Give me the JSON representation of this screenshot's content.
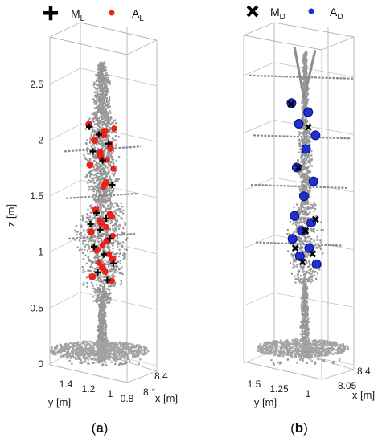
{
  "colors": {
    "cloud": "#8c8c8c",
    "ground": "#a3a3a3",
    "box": "#b4b4b4",
    "axis_text": "#1a1a1a",
    "marker_M": "#000000",
    "marker_A_L": "#e8231c",
    "marker_A_D": "#1f2fd6"
  },
  "panels": [
    {
      "label": "(a)",
      "legend": [
        {
          "name": "M",
          "sub": "L",
          "marker": "plus",
          "color": "#000000"
        },
        {
          "name": "A",
          "sub": "L",
          "marker": "dot",
          "color": "#e8231c"
        }
      ],
      "zlabel": "z [m]",
      "ylabel": "y [m]",
      "xlabel": "x [m]",
      "z_ticks": [
        "0",
        "0.5",
        "1",
        "1.5",
        "2",
        "2.5"
      ],
      "y_ticks": [
        "1.4",
        "1.2",
        "1",
        "0.8"
      ],
      "x_ticks": [
        "8.1",
        "8.4"
      ]
    },
    {
      "label": "(b)",
      "legend": [
        {
          "name": "M",
          "sub": "D",
          "marker": "cross",
          "color": "#000000"
        },
        {
          "name": "A",
          "sub": "D",
          "marker": "dot",
          "color": "#1f2fd6"
        }
      ],
      "ylabel": "y [m]",
      "xlabel": "x [m]",
      "y_ticks": [
        "1.5",
        "1.25",
        "1"
      ],
      "x_ticks": [
        "8.05",
        "8.4"
      ]
    }
  ],
  "chart_data": [
    {
      "type": "scatter",
      "description_type": "3d point cloud",
      "zlabel": "z [m]",
      "ylabel": "y [m]",
      "xlabel": "x [m]",
      "zlim": [
        0,
        2.75
      ],
      "series": [
        {
          "name": "M_L",
          "marker": "plus",
          "color": "#000000",
          "z": [
            2.12,
            2.05,
            1.97,
            1.9,
            1.82,
            1.6,
            1.35,
            1.3,
            1.25,
            1.2,
            1.12,
            1.05,
            0.98,
            0.9,
            0.82,
            0.75
          ]
        },
        {
          "name": "A_L",
          "marker": "dot",
          "color": "#e8231c",
          "z": [
            2.14,
            2.08,
            2.0,
            1.93,
            1.86,
            1.78,
            1.62,
            1.38,
            1.32,
            1.26,
            1.18,
            1.1,
            1.02,
            0.94,
            0.86,
            0.78
          ]
        }
      ]
    },
    {
      "type": "scatter",
      "description_type": "3d point cloud",
      "ylabel": "y [m]",
      "xlabel": "x [m]",
      "series": [
        {
          "name": "M_D",
          "marker": "cross",
          "color": "#000000",
          "z": [
            2.25,
            2.05,
            1.7,
            1.25,
            1.15,
            1.0,
            0.95,
            0.88
          ]
        },
        {
          "name": "A_D",
          "marker": "dot",
          "color": "#1f2fd6",
          "z": [
            2.26,
            2.18,
            2.08,
            1.98,
            1.86,
            1.7,
            1.58,
            1.45,
            1.28,
            1.22,
            1.15,
            1.08,
            1.0,
            0.93,
            0.86
          ]
        }
      ]
    }
  ]
}
